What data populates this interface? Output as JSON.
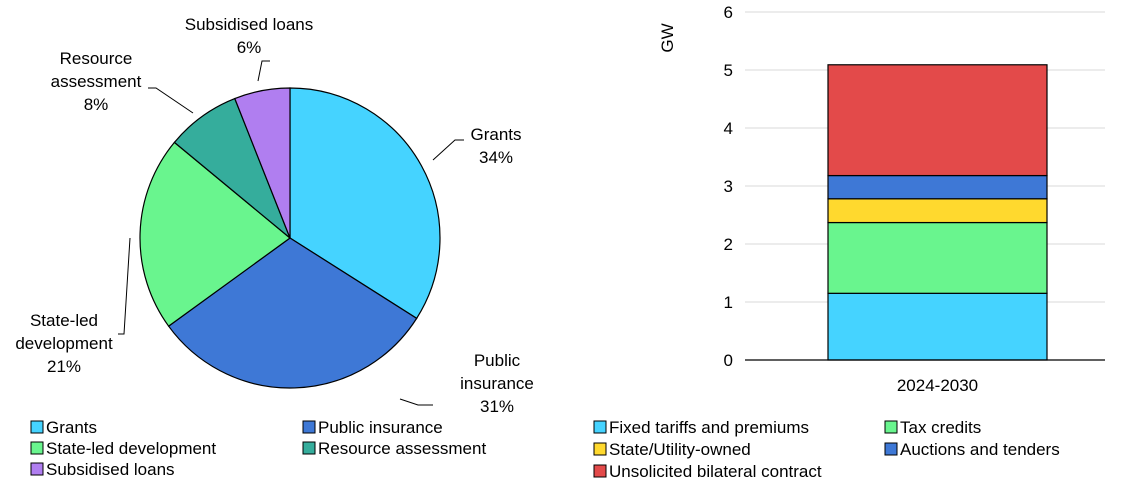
{
  "chart_data": [
    {
      "type": "pie",
      "series": [
        {
          "name": "Grants",
          "value": 34,
          "color": "#45D3FF",
          "label_name": "Grants",
          "label_value": "34%"
        },
        {
          "name": "Public insurance",
          "value": 31,
          "color": "#3E78D6",
          "label_name": "Public\ninsurance",
          "label_value": "31%"
        },
        {
          "name": "State-led development",
          "value": 21,
          "color": "#69F58E",
          "label_name": "State-led\ndevelopment",
          "label_value": "21%"
        },
        {
          "name": "Resource assessment",
          "value": 8,
          "color": "#35AD9C",
          "label_name": "Resource\nassessment",
          "label_value": "8%"
        },
        {
          "name": "Subsidised loans",
          "value": 6,
          "color": "#B07EF0",
          "label_name": "Subsidised loans",
          "label_value": "6%"
        }
      ],
      "legend_placement": "bottom"
    },
    {
      "type": "bar",
      "stacked": true,
      "categories": [
        "2024-2030"
      ],
      "ylabel": "GW",
      "ylim": [
        0,
        6
      ],
      "yticks": [
        "0",
        "1",
        "2",
        "3",
        "4",
        "5",
        "6"
      ],
      "grid": true,
      "series": [
        {
          "name": "Fixed tariffs and premiums",
          "values": [
            1.15
          ],
          "color": "#45D3FF"
        },
        {
          "name": "Tax credits",
          "values": [
            1.22
          ],
          "color": "#69F58E"
        },
        {
          "name": "State/Utility-owned",
          "values": [
            0.41
          ],
          "color": "#FFD92E"
        },
        {
          "name": "Auctions and tenders",
          "values": [
            0.4
          ],
          "color": "#3E78D6"
        },
        {
          "name": "Unsolicited bilateral contract",
          "values": [
            1.91
          ],
          "color": "#E34A4A"
        }
      ],
      "legend_placement": "bottom"
    }
  ]
}
